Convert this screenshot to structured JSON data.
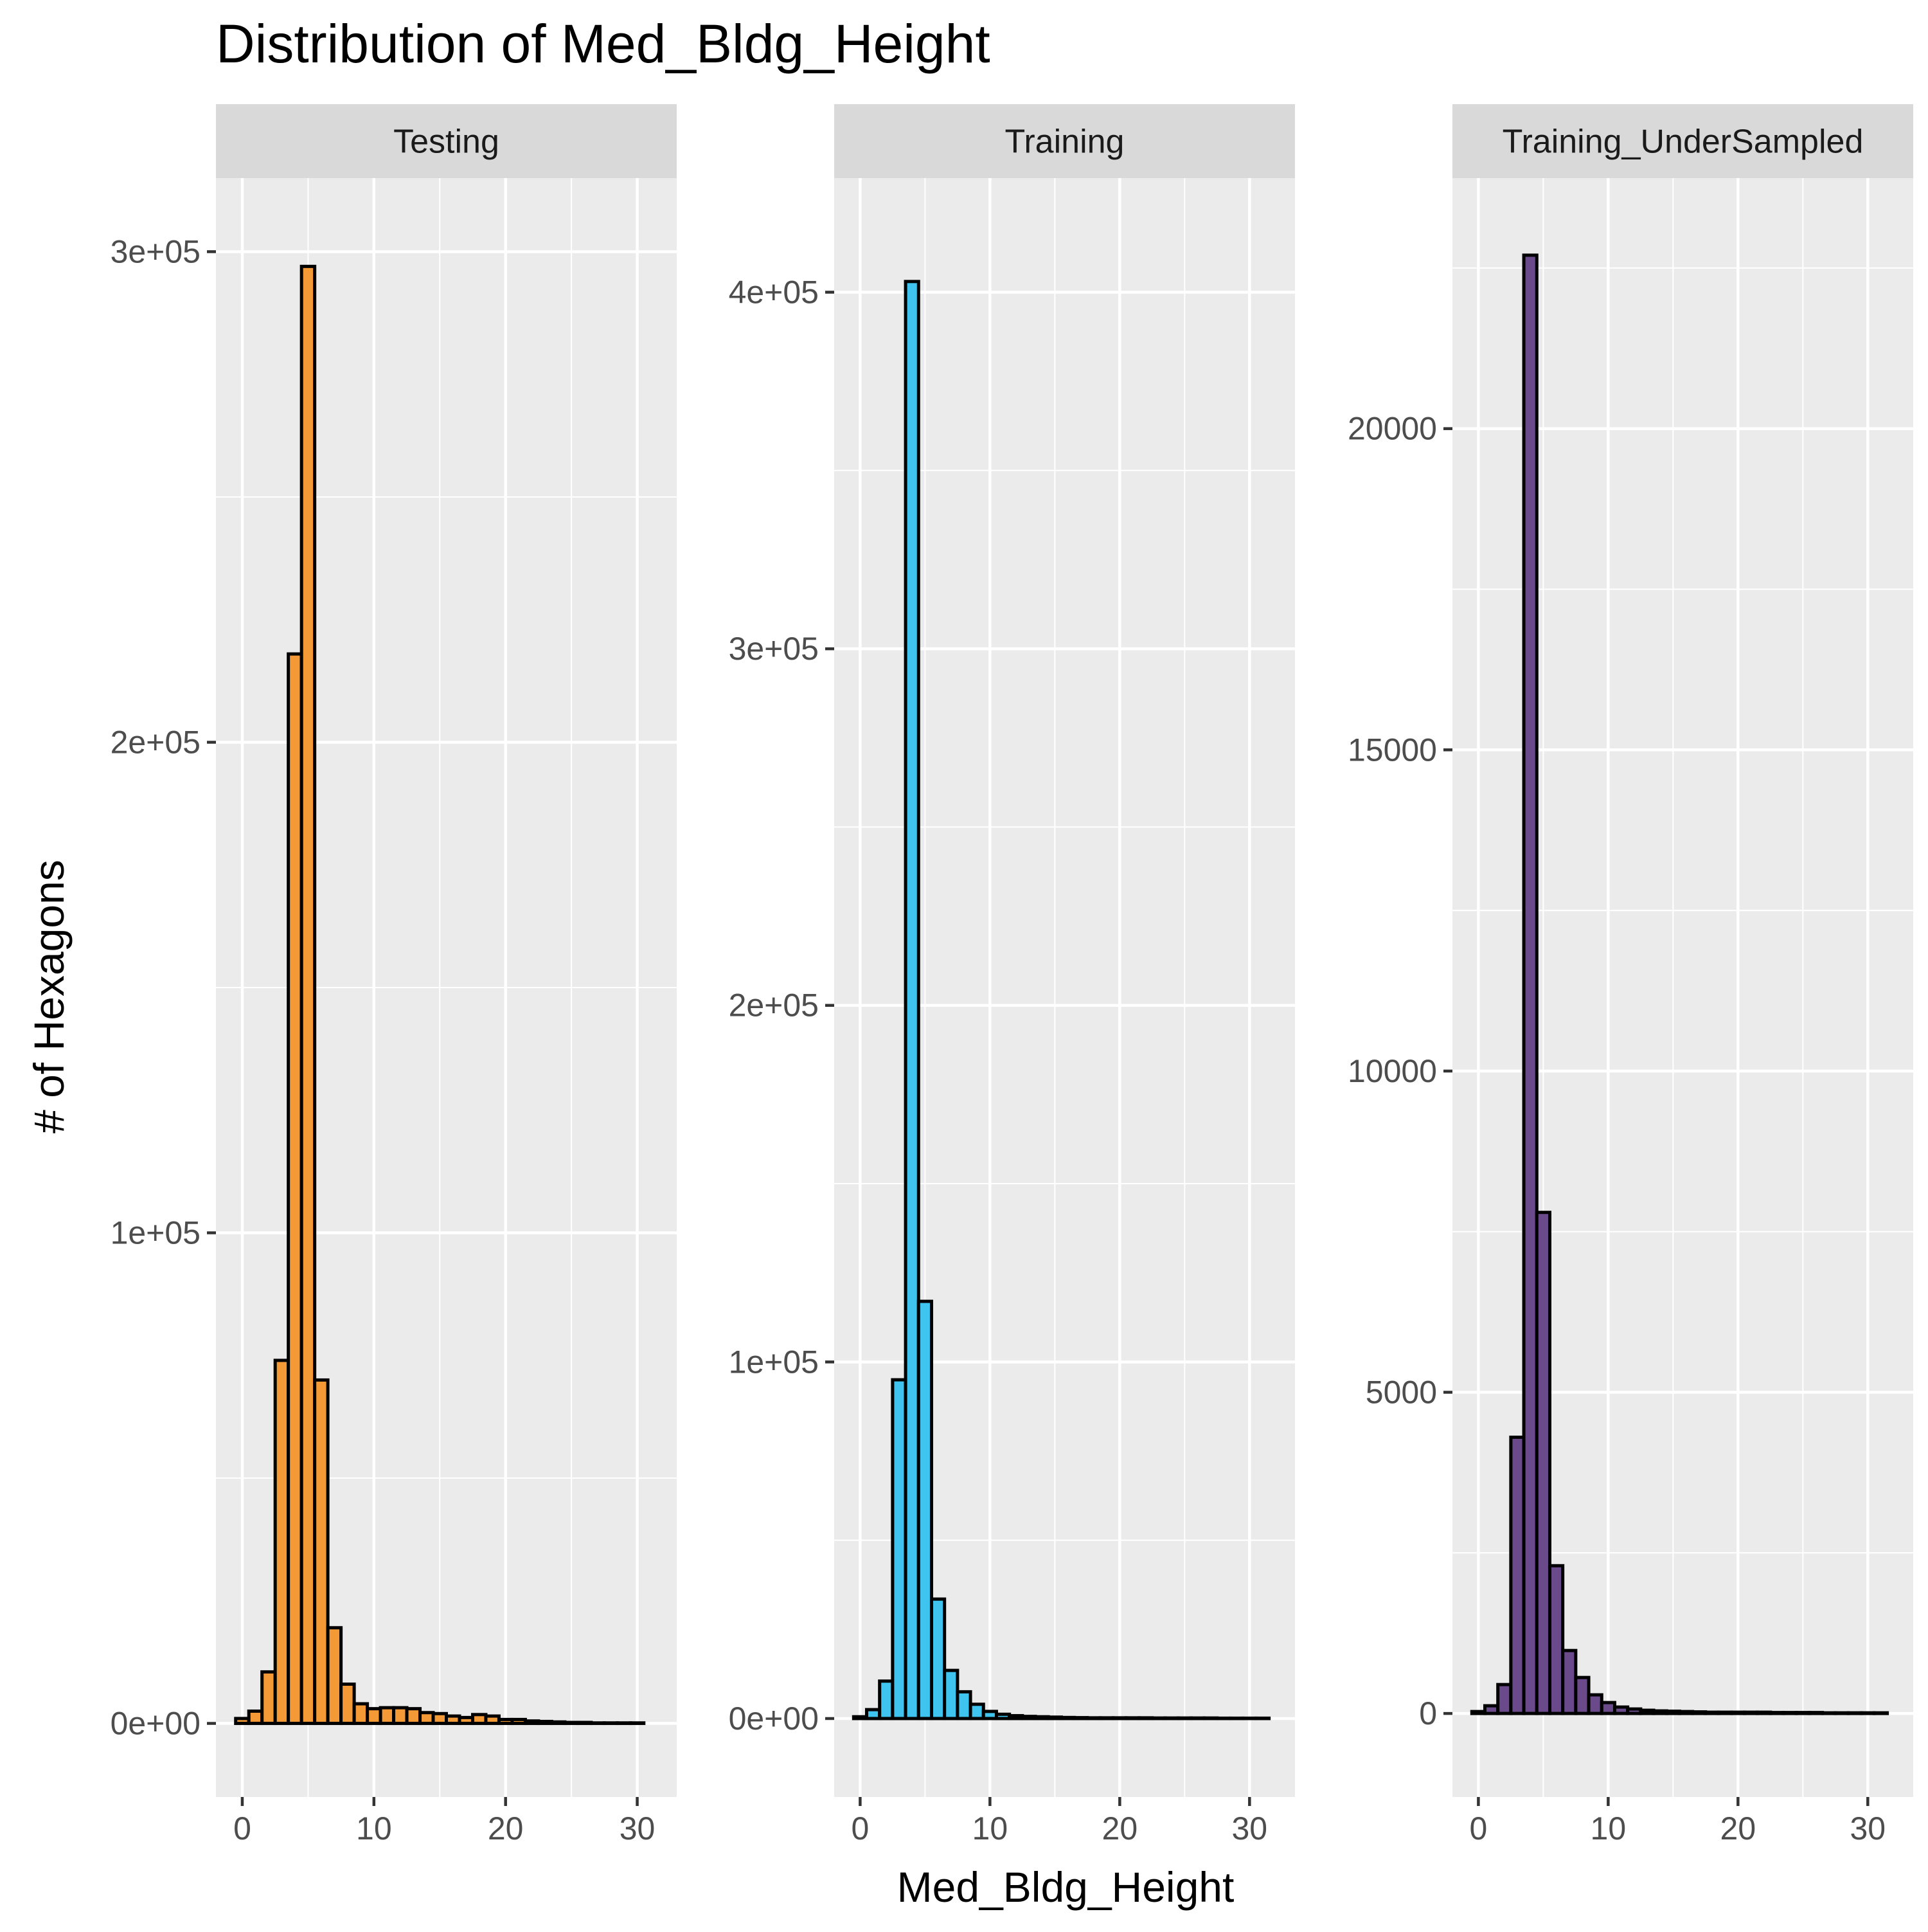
{
  "chart_data": {
    "type": "bar",
    "title": "Distribution of Med_Bldg_Height",
    "xlabel": "Med_Bldg_Height",
    "ylabel": "# of Hexagons",
    "grid": true,
    "legend": "none",
    "bin_width": 1,
    "panels": [
      {
        "name": "Testing",
        "fill": "#F39A37",
        "xlim": [
          -2,
          33
        ],
        "ylim": [
          -15000,
          315000
        ],
        "x_ticks": [
          0,
          10,
          20,
          30
        ],
        "y_ticks": [
          0,
          100000,
          200000,
          300000
        ],
        "y_tick_labels": [
          "0e+00",
          "1e+05",
          "2e+05",
          "3e+05"
        ],
        "x": [
          0,
          1,
          2,
          3,
          4,
          5,
          6,
          7,
          8,
          9,
          10,
          11,
          12,
          13,
          14,
          15,
          16,
          17,
          18,
          19,
          20,
          21,
          22,
          23,
          24,
          25,
          26,
          27,
          28,
          29,
          30
        ],
        "values": [
          1000,
          2500,
          10500,
          74000,
          218000,
          297000,
          70000,
          19500,
          8000,
          4000,
          3000,
          3200,
          3200,
          3000,
          2200,
          2000,
          1500,
          1200,
          1800,
          1500,
          800,
          800,
          500,
          400,
          300,
          200,
          200,
          100,
          100,
          100,
          100
        ]
      },
      {
        "name": "Training",
        "fill": "#3EC4EE",
        "xlim": [
          -2,
          33.5
        ],
        "ylim": [
          -22000,
          432000
        ],
        "x_ticks": [
          0,
          10,
          20,
          30
        ],
        "y_ticks": [
          0,
          100000,
          200000,
          300000,
          400000
        ],
        "y_tick_labels": [
          "0e+00",
          "1e+05",
          "2e+05",
          "3e+05",
          "4e+05"
        ],
        "x": [
          0,
          1,
          2,
          3,
          4,
          5,
          6,
          7,
          8,
          9,
          10,
          11,
          12,
          13,
          14,
          15,
          16,
          17,
          18,
          19,
          20,
          21,
          22,
          23,
          24,
          25,
          26,
          27,
          28,
          29,
          30,
          31
        ],
        "values": [
          500,
          2500,
          10500,
          95000,
          403000,
          117000,
          33500,
          13500,
          7500,
          4000,
          2000,
          1200,
          800,
          600,
          500,
          400,
          300,
          250,
          200,
          200,
          200,
          200,
          200,
          150,
          150,
          150,
          150,
          150,
          100,
          100,
          100,
          100
        ]
      },
      {
        "name": "Training_UnderSampled",
        "fill": "#6A4A8B",
        "xlim": [
          -2,
          33.5
        ],
        "ylim": [
          -1300,
          23900
        ],
        "x_ticks": [
          0,
          10,
          20,
          30
        ],
        "y_ticks": [
          0,
          5000,
          10000,
          15000,
          20000
        ],
        "y_tick_labels": [
          "0",
          "5000",
          "10000",
          "15000",
          "20000"
        ],
        "x": [
          0,
          1,
          2,
          3,
          4,
          5,
          6,
          7,
          8,
          9,
          10,
          11,
          12,
          13,
          14,
          15,
          16,
          17,
          18,
          19,
          20,
          21,
          22,
          23,
          24,
          25,
          26,
          27,
          28,
          29,
          30,
          31
        ],
        "values": [
          30,
          120,
          450,
          4300,
          22700,
          7800,
          2300,
          980,
          560,
          290,
          170,
          100,
          70,
          50,
          40,
          35,
          30,
          25,
          20,
          20,
          20,
          20,
          20,
          15,
          15,
          15,
          15,
          10,
          10,
          10,
          10,
          10
        ]
      }
    ]
  }
}
